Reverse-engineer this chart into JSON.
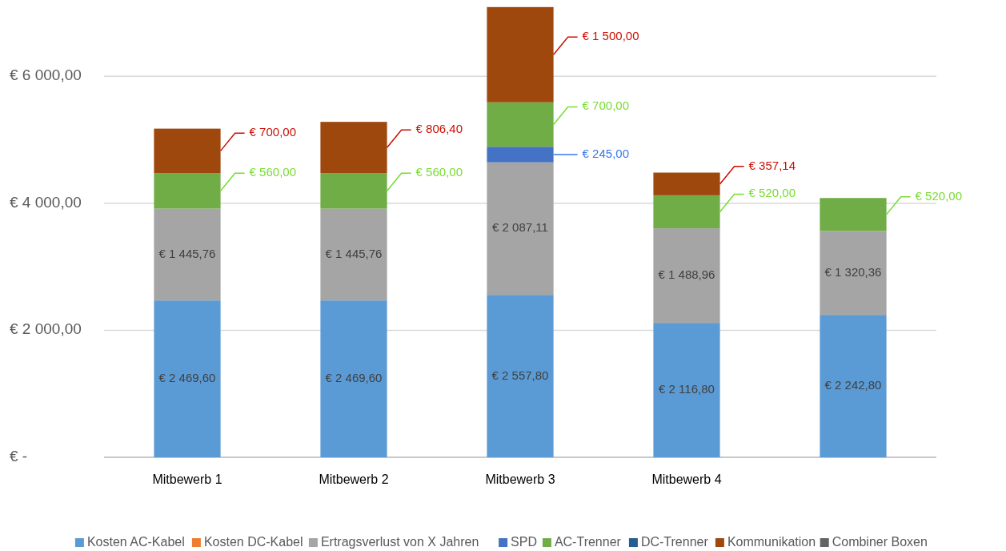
{
  "chart_data": {
    "type": "bar",
    "stacked": true,
    "categories": [
      "Mitbewerb 1",
      "Mitbewerb 2",
      "Mitbewerb 3",
      "Mitbewerb 4",
      null
    ],
    "series": [
      {
        "name": "Kosten AC-Kabel",
        "color": "#5b9bd5",
        "values": [
          2469.6,
          2469.6,
          2557.8,
          2116.8,
          2242.8
        ],
        "value_labels": [
          "€ 2 469,60",
          "€ 2 469,60",
          "€ 2 557,80",
          "€ 2 116,80",
          "€ 2 242,80"
        ]
      },
      {
        "name": "Kosten DC-Kabel",
        "color": "#ed7d31",
        "values": [
          null,
          null,
          null,
          null,
          null
        ]
      },
      {
        "name": "Ertragsverlust von X Jahren",
        "color": "#a5a5a5",
        "values": [
          1445.76,
          1445.76,
          2087.11,
          1488.96,
          1320.36
        ],
        "value_labels": [
          "€ 1 445,76",
          "€ 1 445,76",
          "€ 2 087,11",
          "€ 1 488,96",
          "€ 1 320,36"
        ]
      },
      {
        "name": "SPD",
        "color": "#4472c4",
        "values": [
          null,
          null,
          245,
          null,
          null
        ],
        "value_labels": [
          null,
          null,
          "€ 245,00",
          null,
          null
        ]
      },
      {
        "name": "AC-Trenner",
        "color": "#70ad47",
        "values": [
          560,
          560,
          700,
          520,
          520
        ],
        "value_labels": [
          "€ 560,00",
          "€ 560,00",
          "€ 700,00",
          "€ 520,00",
          "€ 520,00"
        ]
      },
      {
        "name": "DC-Trenner",
        "color": "#255e91",
        "values": [
          null,
          null,
          null,
          null,
          null
        ]
      },
      {
        "name": "Kommunikation",
        "color": "#9e480e",
        "values": [
          700,
          806.4,
          1500,
          357.14,
          null
        ],
        "value_labels": [
          "€ 700,00",
          "€ 806,40",
          "€ 1 500,00",
          "€ 357,14",
          null
        ]
      },
      {
        "name": "Combiner Boxen",
        "color": "#636363",
        "values": [
          null,
          null,
          null,
          null,
          null
        ]
      }
    ],
    "ylim": [
      0,
      7100
    ],
    "yticks": [
      {
        "value": 0,
        "label": "€ -"
      },
      {
        "value": 2000,
        "label": "€ 2 000,00"
      },
      {
        "value": 4000,
        "label": "€ 4 000,00"
      },
      {
        "value": 6000,
        "label": "€ 6 000,00"
      }
    ],
    "grid": "y",
    "legend": "bottom"
  }
}
